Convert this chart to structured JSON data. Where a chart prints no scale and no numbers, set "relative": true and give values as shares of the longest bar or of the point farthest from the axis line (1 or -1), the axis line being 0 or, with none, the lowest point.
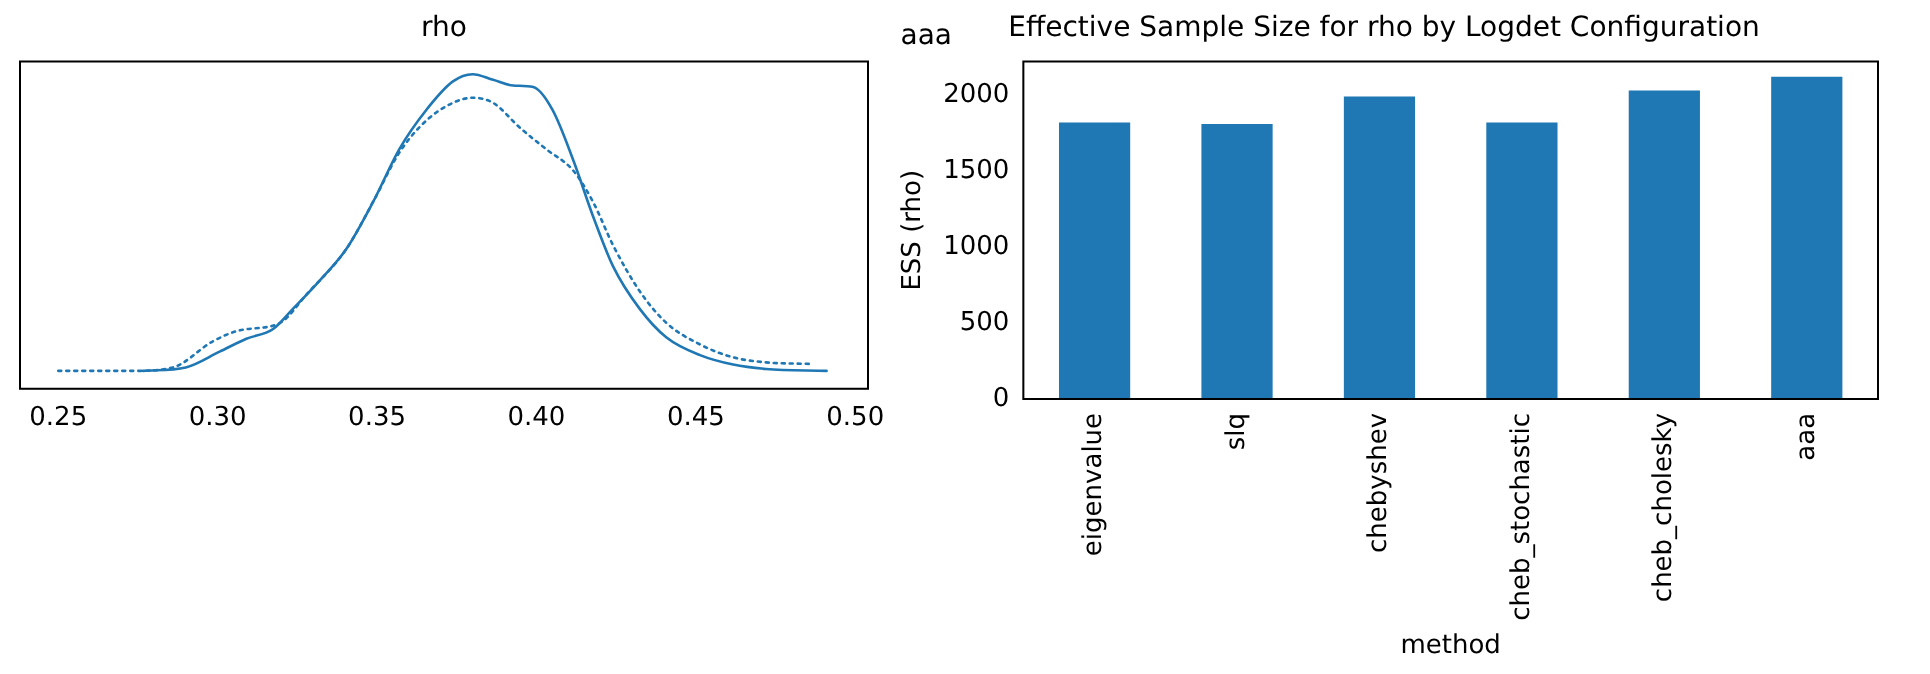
{
  "chart_data": [
    {
      "type": "line",
      "title": "rho",
      "relative": true,
      "tick_labels": "x",
      "grid": false,
      "legend": false,
      "marker": "none",
      "xlim": [
        0.238,
        0.504
      ],
      "xticks": [
        {
          "value": 0.25,
          "label": "0.25"
        },
        {
          "value": 0.3,
          "label": "0.30"
        },
        {
          "value": 0.35,
          "label": "0.35"
        },
        {
          "value": 0.4,
          "label": "0.40"
        },
        {
          "value": 0.45,
          "label": "0.45"
        },
        {
          "value": 0.5,
          "label": "0.50"
        }
      ],
      "annotations": [
        "aaa"
      ],
      "series": [
        {
          "color": "#1f77b4",
          "line_style": "solid",
          "x": [
            0.2766,
            0.29,
            0.3006,
            0.309,
            0.3174,
            0.3236,
            0.332,
            0.3404,
            0.3487,
            0.357,
            0.3655,
            0.3738,
            0.38,
            0.3864,
            0.3927,
            0.399,
            0.405,
            0.4115,
            0.4178,
            0.424,
            0.4324,
            0.4408,
            0.4513,
            0.4617,
            0.472,
            0.491
          ],
          "values": [
            0.057,
            0.068,
            0.118,
            0.159,
            0.19,
            0.254,
            0.344,
            0.445,
            0.593,
            0.762,
            0.887,
            0.977,
            1,
            0.982,
            0.964,
            0.959,
            0.887,
            0.728,
            0.547,
            0.39,
            0.254,
            0.163,
            0.107,
            0.077,
            0.063,
            0.057
          ]
        },
        {
          "color": "#1f77b4",
          "line_style": "dotted",
          "x": [
            0.25,
            0.2734,
            0.286,
            0.2985,
            0.307,
            0.3195,
            0.3278,
            0.3404,
            0.3487,
            0.357,
            0.3655,
            0.3738,
            0.38,
            0.3864,
            0.3948,
            0.403,
            0.4115,
            0.4178,
            0.424,
            0.4324,
            0.4408,
            0.4513,
            0.4617,
            0.472,
            0.4858
          ],
          "values": [
            0.057,
            0.057,
            0.068,
            0.151,
            0.186,
            0.209,
            0.299,
            0.445,
            0.593,
            0.751,
            0.853,
            0.909,
            0.925,
            0.909,
            0.83,
            0.762,
            0.694,
            0.593,
            0.457,
            0.31,
            0.209,
            0.141,
            0.1,
            0.084,
            0.079
          ]
        }
      ]
    },
    {
      "type": "bar",
      "title": "Effective Sample Size for rho by Logdet Configuration",
      "xlabel": "method",
      "ylabel": "ESS (rho)",
      "grid": false,
      "legend": false,
      "color": "#1f77b4",
      "categories": [
        "eigenvalue",
        "slq",
        "chebyshev",
        "cheb_stochastic",
        "cheb_cholesky",
        "aaa"
      ],
      "values": [
        1820,
        1810,
        1990,
        1820,
        2030,
        2120
      ],
      "ylim": [
        0,
        2220
      ],
      "yticks": [
        0,
        500,
        1000,
        1500,
        2000
      ]
    }
  ]
}
